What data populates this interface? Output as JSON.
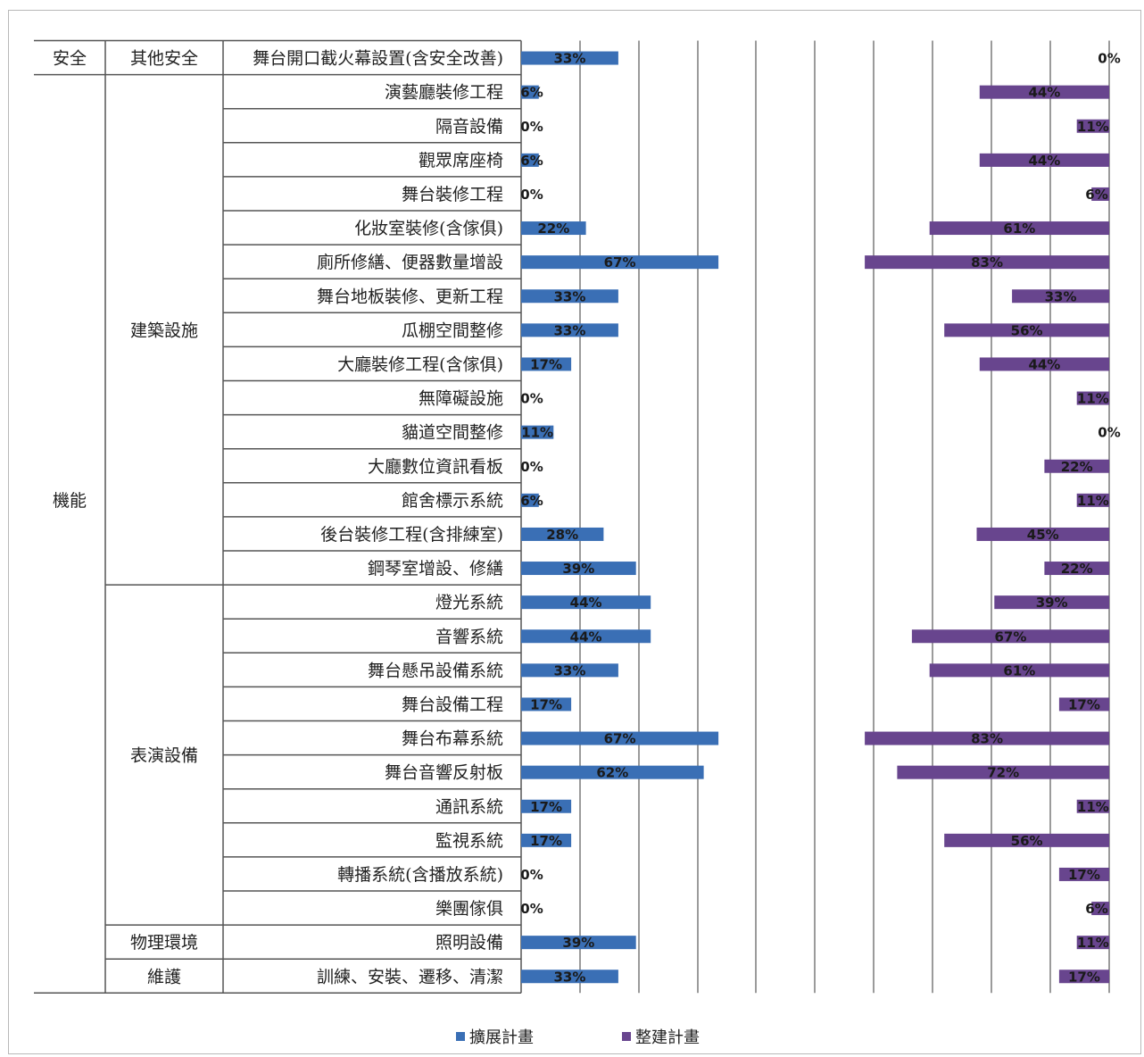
{
  "chart_data": {
    "type": "bar",
    "orientation": "horizontal",
    "layout": "butterfly",
    "xlim": [
      0,
      100
    ],
    "legend": "bottom",
    "grid": true,
    "colors": {
      "擴展計畫": "#3a6fb5",
      "整建計畫": "#68458e"
    },
    "groups": [
      {
        "name": "安全",
        "subgroups": [
          {
            "name": "其他安全",
            "count": 1
          }
        ]
      },
      {
        "name": "機能",
        "subgroups": [
          {
            "name": "建築設施",
            "count": 15
          },
          {
            "name": "表演設備",
            "count": 10
          }
        ]
      },
      {
        "name": "",
        "subgroups": [
          {
            "name": "物理環境",
            "count": 1
          },
          {
            "name": "維護",
            "count": 1
          }
        ]
      }
    ],
    "categories": [
      "舞台開口截火幕設置(含安全改善)",
      "演藝廳裝修工程",
      "隔音設備",
      "觀眾席座椅",
      "舞台裝修工程",
      "化妝室裝修(含傢俱)",
      "廁所修繕、便器數量增設",
      "舞台地板裝修、更新工程",
      "瓜棚空間整修",
      "大廳裝修工程(含傢俱)",
      "無障礙設施",
      "貓道空間整修",
      "大廳數位資訊看板",
      "館舍標示系統",
      "後台裝修工程(含排練室)",
      "鋼琴室增設、修繕",
      "燈光系統",
      "音響系統",
      "舞台懸吊設備系統",
      "舞台設備工程",
      "舞台布幕系統",
      "舞台音響反射板",
      "通訊系統",
      "監視系統",
      "轉播系統(含播放系統)",
      "樂團傢俱",
      "照明設備",
      "訓練、安裝、遷移、清潔"
    ],
    "series": [
      {
        "name": "擴展計畫",
        "values": [
          33,
          6,
          0,
          6,
          0,
          22,
          67,
          33,
          33,
          17,
          0,
          11,
          0,
          6,
          28,
          39,
          44,
          44,
          33,
          17,
          67,
          62,
          17,
          17,
          0,
          0,
          39,
          33
        ]
      },
      {
        "name": "整建計畫",
        "values": [
          0,
          44,
          11,
          44,
          6,
          61,
          83,
          33,
          56,
          44,
          11,
          0,
          22,
          11,
          45,
          22,
          39,
          67,
          61,
          17,
          83,
          72,
          11,
          56,
          17,
          6,
          11,
          17
        ]
      }
    ]
  }
}
